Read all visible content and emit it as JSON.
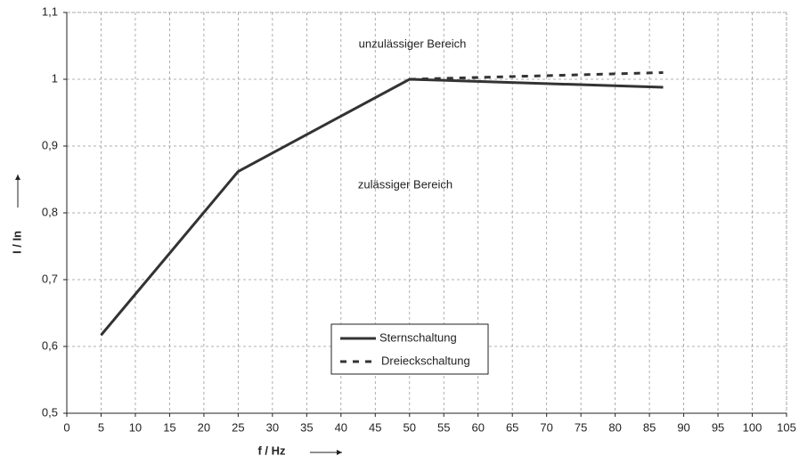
{
  "chart_data": {
    "type": "line",
    "x_label": "f / Hz",
    "y_label": "I / In",
    "annotations": [
      "unzulässiger Bereich",
      "zulässiger Bereich"
    ],
    "series": [
      {
        "name": "Sternschaltung",
        "color": "#333333",
        "style": "solid",
        "x": [
          5,
          25,
          50,
          87
        ],
        "values": [
          0.617,
          0.862,
          1.0,
          0.988
        ]
      },
      {
        "name": "Dreieckschaltung",
        "color": "#333333",
        "style": "dashed",
        "x": [
          50,
          87
        ],
        "values": [
          1.0,
          1.01
        ]
      }
    ],
    "xlim": [
      0,
      105
    ],
    "xticks": [
      0,
      5,
      10,
      15,
      20,
      25,
      30,
      35,
      40,
      45,
      50,
      55,
      60,
      65,
      70,
      75,
      80,
      85,
      90,
      95,
      100,
      105
    ],
    "ylim": [
      0.5,
      1.1
    ],
    "yticks": [
      {
        "value": 0.5,
        "label": "0,5"
      },
      {
        "value": 0.6,
        "label": "0,6"
      },
      {
        "value": 0.7,
        "label": "0,7"
      },
      {
        "value": 0.8,
        "label": "0,8"
      },
      {
        "value": 0.9,
        "label": "0,9"
      },
      1,
      {
        "value": 1.1,
        "label": "1,1"
      }
    ],
    "grid": true,
    "legend": "lower center"
  }
}
